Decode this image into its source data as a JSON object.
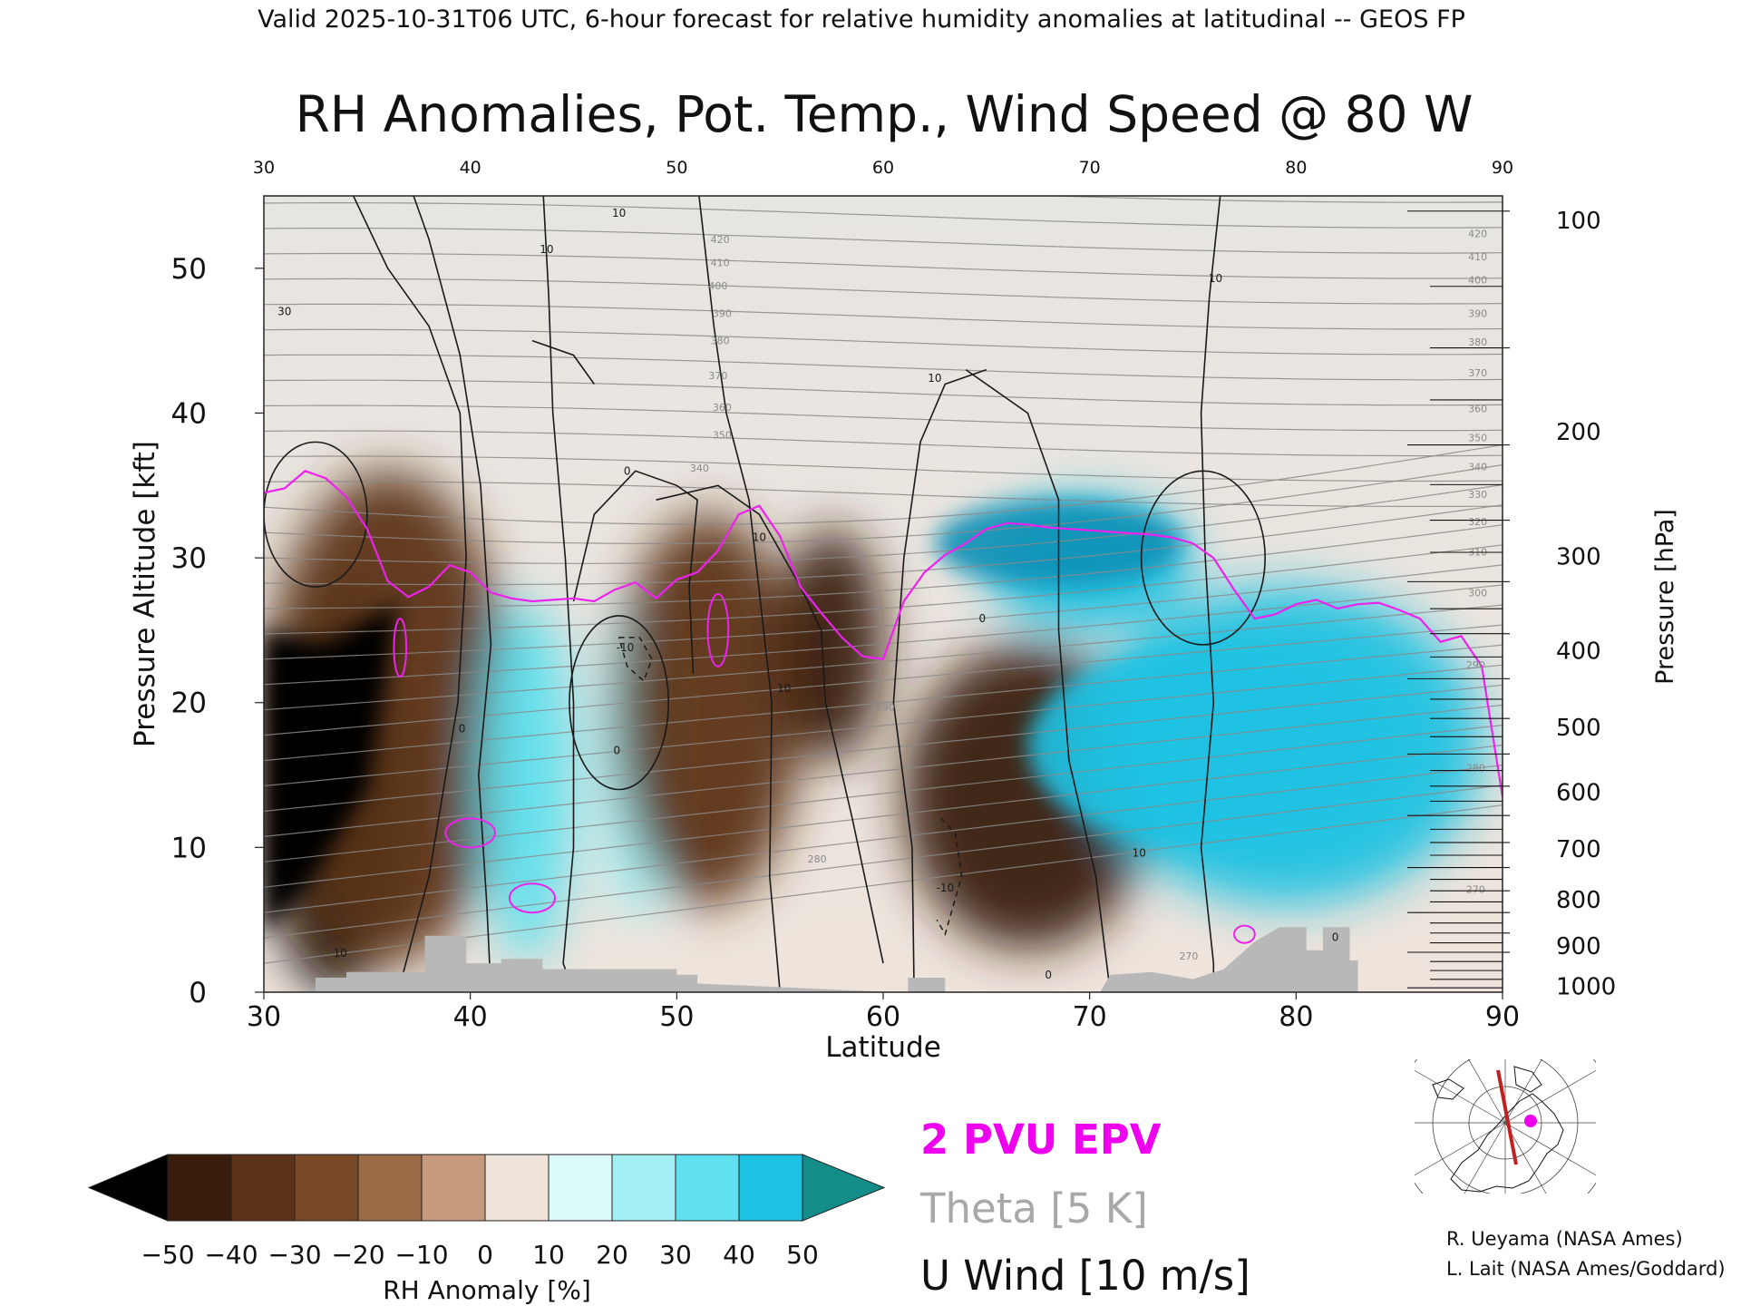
{
  "header": {
    "valid_line": "Valid 2025-10-31T06 UTC, 6-hour forecast for relative humidity anomalies at latitudinal -- GEOS FP",
    "title": "RH Anomalies, Pot. Temp., Wind Speed @ 80 W"
  },
  "legend": {
    "epv": "2 PVU EPV",
    "theta": "Theta [5 K]",
    "uwind": "U Wind [10 m/s]"
  },
  "colorbar": {
    "label": "RH Anomaly [%]",
    "ticks": [
      "−50",
      "−40",
      "−30",
      "−20",
      "−10",
      "0",
      "10",
      "20",
      "30",
      "40",
      "50"
    ],
    "colors": [
      "#3a1c0c",
      "#5c3318",
      "#7a4a28",
      "#9c6c48",
      "#c69a7c",
      "#efe3da",
      "#dcfafa",
      "#a2f0f4",
      "#5ee0ee",
      "#1ec2e2",
      "#0a90b6"
    ],
    "under_color": "#000000",
    "over_color": "#148c88"
  },
  "credits": [
    "R. Ueyama (NASA Ames)",
    "L. Lait (NASA Ames/Goddard)"
  ],
  "chart_data": {
    "type": "heatmap",
    "title": "RH Anomalies, Pot. Temp., Wind Speed @ 80 W",
    "xlabel": "Latitude",
    "ylabel": "Pressure Altitude [kft]",
    "y2label": "Pressure [hPa]",
    "xlim": [
      30,
      90
    ],
    "ylim": [
      0,
      55
    ],
    "xticks": [
      30,
      40,
      50,
      60,
      70,
      80,
      90
    ],
    "yticks": [
      0,
      10,
      20,
      30,
      40,
      50
    ],
    "pressure_ticks": [
      {
        "hPa": 100,
        "kft": 53.3
      },
      {
        "hPa": 200,
        "kft": 38.7
      },
      {
        "hPa": 300,
        "kft": 30.1
      },
      {
        "hPa": 400,
        "kft": 23.6
      },
      {
        "hPa": 500,
        "kft": 18.3
      },
      {
        "hPa": 600,
        "kft": 13.8
      },
      {
        "hPa": 700,
        "kft": 9.9
      },
      {
        "hPa": 800,
        "kft": 6.4
      },
      {
        "hPa": 900,
        "kft": 3.2
      },
      {
        "hPa": 1000,
        "kft": 0.4
      }
    ],
    "theta_labels": [
      {
        "lat": 52.1,
        "kft": 52.0,
        "text": "420"
      },
      {
        "lat": 52.1,
        "kft": 50.4,
        "text": "410"
      },
      {
        "lat": 52.0,
        "kft": 48.8,
        "text": "400"
      },
      {
        "lat": 52.2,
        "kft": 46.9,
        "text": "390"
      },
      {
        "lat": 52.1,
        "kft": 45.0,
        "text": "380"
      },
      {
        "lat": 52.0,
        "kft": 42.6,
        "text": "370"
      },
      {
        "lat": 52.2,
        "kft": 40.4,
        "text": "360"
      },
      {
        "lat": 52.2,
        "kft": 38.5,
        "text": "350"
      },
      {
        "lat": 51.1,
        "kft": 36.2,
        "text": "340"
      },
      {
        "lat": 88.8,
        "kft": 52.4,
        "text": "420"
      },
      {
        "lat": 88.8,
        "kft": 50.8,
        "text": "410"
      },
      {
        "lat": 88.8,
        "kft": 49.2,
        "text": "400"
      },
      {
        "lat": 88.8,
        "kft": 46.9,
        "text": "390"
      },
      {
        "lat": 88.8,
        "kft": 44.9,
        "text": "380"
      },
      {
        "lat": 88.8,
        "kft": 42.8,
        "text": "370"
      },
      {
        "lat": 88.8,
        "kft": 40.3,
        "text": "360"
      },
      {
        "lat": 88.8,
        "kft": 38.3,
        "text": "350"
      },
      {
        "lat": 88.8,
        "kft": 36.3,
        "text": "340"
      },
      {
        "lat": 88.8,
        "kft": 34.4,
        "text": "330"
      },
      {
        "lat": 88.8,
        "kft": 32.5,
        "text": "320"
      },
      {
        "lat": 88.8,
        "kft": 30.4,
        "text": "310"
      },
      {
        "lat": 88.8,
        "kft": 27.6,
        "text": "300"
      },
      {
        "lat": 88.7,
        "kft": 22.6,
        "text": "290"
      },
      {
        "lat": 88.7,
        "kft": 15.5,
        "text": "280"
      },
      {
        "lat": 88.7,
        "kft": 7.1,
        "text": "270"
      },
      {
        "lat": 74.8,
        "kft": 2.5,
        "text": "270"
      },
      {
        "lat": 60.1,
        "kft": 19.7,
        "text": "290"
      },
      {
        "lat": 56.8,
        "kft": 9.2,
        "text": "280"
      }
    ],
    "uwind_labels": [
      {
        "lat": 33.7,
        "kft": 2.7,
        "text": "10"
      },
      {
        "lat": 43.7,
        "kft": 51.3,
        "text": "10"
      },
      {
        "lat": 47.2,
        "kft": 53.8,
        "text": "10"
      },
      {
        "lat": 54.0,
        "kft": 31.4,
        "text": "10"
      },
      {
        "lat": 62.5,
        "kft": 42.4,
        "text": "10"
      },
      {
        "lat": 76.1,
        "kft": 49.3,
        "text": "10"
      },
      {
        "lat": 72.4,
        "kft": 9.6,
        "text": "10"
      },
      {
        "lat": 31.0,
        "kft": 47.0,
        "text": "30"
      },
      {
        "lat": 47.6,
        "kft": 36.0,
        "text": "0"
      },
      {
        "lat": 47.1,
        "kft": 16.7,
        "text": "0"
      },
      {
        "lat": 64.8,
        "kft": 25.8,
        "text": "0"
      },
      {
        "lat": 68.0,
        "kft": 1.2,
        "text": "0"
      },
      {
        "lat": 39.6,
        "kft": 18.2,
        "text": "0"
      },
      {
        "lat": 81.9,
        "kft": 3.8,
        "text": "0"
      },
      {
        "lat": 47.5,
        "kft": 23.8,
        "text": "-10"
      },
      {
        "lat": 63.0,
        "kft": 7.2,
        "text": "-10"
      },
      {
        "lat": 55.2,
        "kft": 21.0,
        "text": "10"
      }
    ],
    "epv_2pvu_kft": [
      [
        30,
        34.5
      ],
      [
        31,
        34.8
      ],
      [
        32,
        36.0
      ],
      [
        33,
        35.5
      ],
      [
        34,
        34.2
      ],
      [
        35,
        32.0
      ],
      [
        36,
        28.4
      ],
      [
        37,
        27.3
      ],
      [
        38,
        28.0
      ],
      [
        39,
        29.5
      ],
      [
        40,
        29.0
      ],
      [
        41,
        27.6
      ],
      [
        42,
        27.2
      ],
      [
        43,
        27.0
      ],
      [
        44,
        27.1
      ],
      [
        45,
        27.2
      ],
      [
        46,
        27.0
      ],
      [
        47,
        27.8
      ],
      [
        48,
        28.3
      ],
      [
        49,
        27.2
      ],
      [
        50,
        28.5
      ],
      [
        51,
        29.0
      ],
      [
        52,
        30.5
      ],
      [
        53,
        33.0
      ],
      [
        54,
        33.6
      ],
      [
        55,
        31.5
      ],
      [
        56,
        28.0
      ],
      [
        57,
        26.2
      ],
      [
        58,
        24.5
      ],
      [
        59,
        23.2
      ],
      [
        60,
        23.0
      ],
      [
        61,
        27.0
      ],
      [
        62,
        29.0
      ],
      [
        63,
        30.2
      ],
      [
        64,
        31.0
      ],
      [
        65,
        32.0
      ],
      [
        66,
        32.4
      ],
      [
        67,
        32.3
      ],
      [
        68,
        32.1
      ],
      [
        69,
        32.0
      ],
      [
        70,
        31.9
      ],
      [
        71,
        31.8
      ],
      [
        72,
        31.7
      ],
      [
        73,
        31.6
      ],
      [
        74,
        31.4
      ],
      [
        75,
        31.0
      ],
      [
        76,
        30.0
      ],
      [
        77,
        27.8
      ],
      [
        78,
        25.8
      ],
      [
        79,
        26.1
      ],
      [
        80,
        26.8
      ],
      [
        81,
        27.1
      ],
      [
        82,
        26.5
      ],
      [
        83,
        26.8
      ],
      [
        84,
        26.9
      ],
      [
        85,
        26.4
      ],
      [
        86,
        25.8
      ],
      [
        87,
        24.2
      ],
      [
        88,
        24.6
      ],
      [
        89,
        22.5
      ],
      [
        90,
        13.5
      ]
    ],
    "rh_anomaly_zones": [
      {
        "lat_range": [
          30,
          37
        ],
        "kft_range": [
          0,
          28
        ],
        "rh_anomaly": -55
      },
      {
        "lat_range": [
          30,
          42
        ],
        "kft_range": [
          2,
          36
        ],
        "rh_anomaly": -40
      },
      {
        "lat_range": [
          40.5,
          45
        ],
        "kft_range": [
          2,
          27
        ],
        "rh_anomaly": 35
      },
      {
        "lat_range": [
          46,
          50
        ],
        "kft_range": [
          5,
          27
        ],
        "rh_anomaly": 20
      },
      {
        "lat_range": [
          47,
          56
        ],
        "kft_range": [
          6,
          33
        ],
        "rh_anomaly": -40
      },
      {
        "lat_range": [
          55,
          60
        ],
        "kft_range": [
          16,
          32
        ],
        "rh_anomaly": -45
      },
      {
        "lat_range": [
          61,
          73
        ],
        "kft_range": [
          3,
          24
        ],
        "rh_anomaly": -45
      },
      {
        "lat_range": [
          65,
          75
        ],
        "kft_range": [
          25,
          34
        ],
        "rh_anomaly": 45
      },
      {
        "lat_range": [
          70,
          89
        ],
        "kft_range": [
          6,
          28
        ],
        "rh_anomaly": 40
      }
    ]
  }
}
